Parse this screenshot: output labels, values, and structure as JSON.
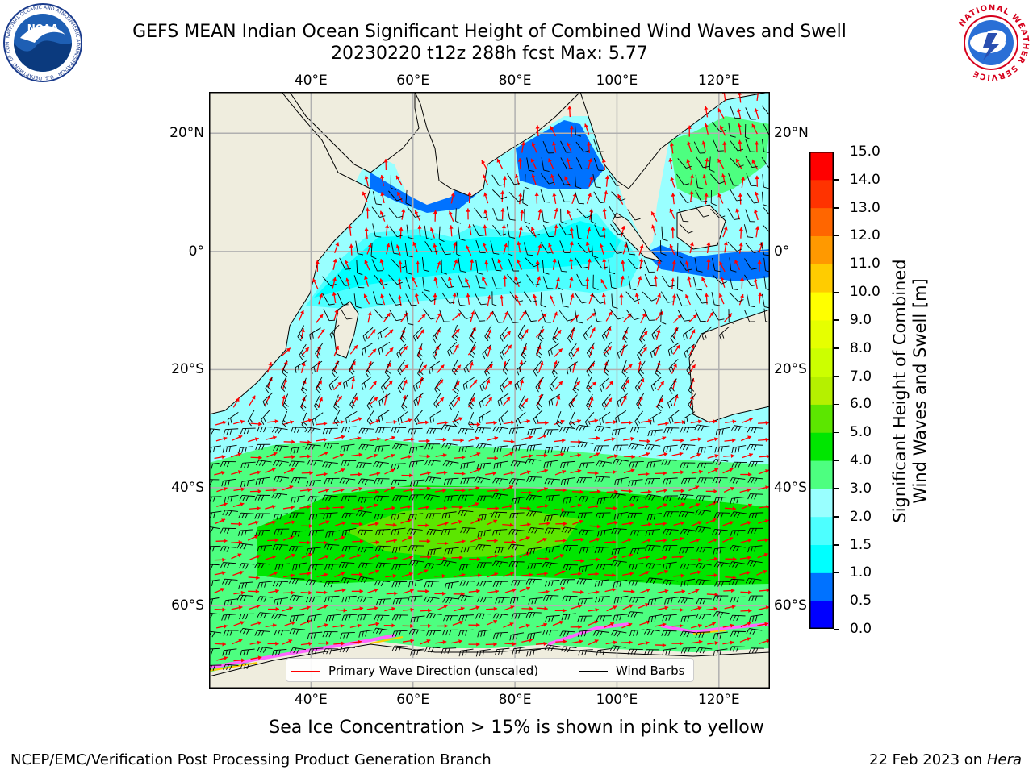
{
  "header": {
    "title_line1": "GEFS MEAN Indian Ocean Significant Height of Combined Wind Waves and Swell",
    "title_line2": "20230220 t12z 288h fcst   Max: 5.77"
  },
  "logos": {
    "noaa": {
      "text": "NOAA",
      "ring_text": "NATIONAL OCEANIC AND ATMOSPHERIC ADMINISTRATION · U.S. DEPARTMENT OF COMMERCE"
    },
    "nws": {
      "ring_text": "NATIONAL WEATHER SERVICE"
    }
  },
  "map": {
    "projection": "plate-carree",
    "lon_range": [
      20,
      130
    ],
    "lat_range": [
      -74,
      27
    ],
    "gridlines": true,
    "lon_ticks": [
      {
        "value": 40,
        "label": "40°E"
      },
      {
        "value": 60,
        "label": "60°E"
      },
      {
        "value": 80,
        "label": "80°E"
      },
      {
        "value": 100,
        "label": "100°E"
      },
      {
        "value": 120,
        "label": "120°E"
      }
    ],
    "lat_ticks": [
      {
        "value": 20,
        "label": "20°N"
      },
      {
        "value": 0,
        "label": "0°"
      },
      {
        "value": -20,
        "label": "20°S"
      },
      {
        "value": -40,
        "label": "40°S"
      },
      {
        "value": -60,
        "label": "60°S"
      }
    ],
    "land_color": "#efedde",
    "gridline_color": "#b0b0b0",
    "wave_direction_color": "#ff0000",
    "wind_barb_color": "#000000"
  },
  "colorbar": {
    "label_line1": "Significant Height of Combined",
    "label_line2": "Wind Waves and Swell [m]",
    "ticks": [
      "0.0",
      "0.5",
      "1.0",
      "1.5",
      "2.0",
      "3.0",
      "4.0",
      "5.0",
      "6.0",
      "7.0",
      "8.0",
      "9.0",
      "10.0",
      "11.0",
      "12.0",
      "13.0",
      "14.0",
      "15.0"
    ],
    "colors": [
      "#0000ff",
      "#0072ff",
      "#00ffff",
      "#4dffff",
      "#99ffff",
      "#4dff80",
      "#00e600",
      "#5ce600",
      "#b5f000",
      "#ccff00",
      "#e6ff00",
      "#ffff00",
      "#ffcc00",
      "#ff9900",
      "#ff6600",
      "#ff3300",
      "#ff0000"
    ]
  },
  "legend": {
    "wave_label": "Primary Wave Direction (unscaled)",
    "wind_label": "Wind Barbs"
  },
  "footer": {
    "sea_ice_note": "Sea Ice Concentration > 15% is shown in pink to yellow",
    "left": "NCEP/EMC/Verification Post Processing Product Generation Branch",
    "date": "22 Feb 2023 on",
    "host": "Hera"
  }
}
